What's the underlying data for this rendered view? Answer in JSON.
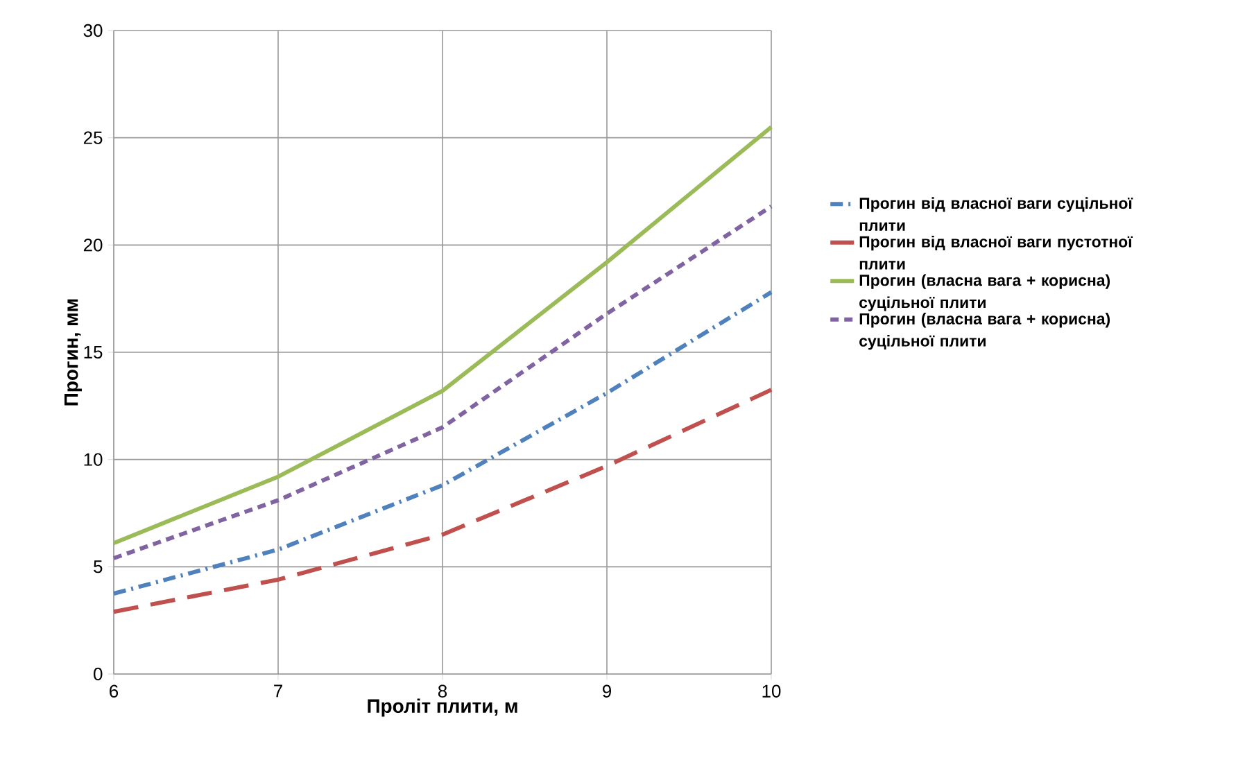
{
  "chart_data": {
    "type": "line",
    "xlabel": "Проліт плити, м",
    "ylabel": "Прогин, мм",
    "x": [
      6,
      7,
      8,
      9,
      10
    ],
    "series": [
      {
        "name": "Прогин від власної ваги суцільної плити",
        "color": "#4f81bd",
        "line_style": "dashed",
        "values": [
          3.75,
          5.8,
          8.8,
          13.1,
          17.8
        ]
      },
      {
        "name": "Прогин від власної ваги пустотної плити",
        "color": "#c0504d",
        "line_style": "dashed",
        "values": [
          2.9,
          4.4,
          6.5,
          9.7,
          13.25
        ]
      },
      {
        "name": "Прогин (власна вага + корисна) суцільної плити",
        "color": "#9bbb59",
        "line_style": "solid",
        "values": [
          6.1,
          9.2,
          13.2,
          19.2,
          25.5
        ]
      },
      {
        "name": "Прогин (власна вага + корисна) суцільної плити",
        "color": "#8064a2",
        "line_style": "dashed",
        "values": [
          5.4,
          8.1,
          11.5,
          16.8,
          21.8
        ]
      }
    ],
    "xlim": [
      6,
      10
    ],
    "ylim": [
      0,
      30
    ],
    "xticks": [
      6,
      7,
      8,
      9,
      10
    ],
    "yticks": [
      0,
      5,
      10,
      15,
      20,
      25,
      30
    ],
    "grid": true,
    "legend": "right",
    "marker": "none"
  }
}
